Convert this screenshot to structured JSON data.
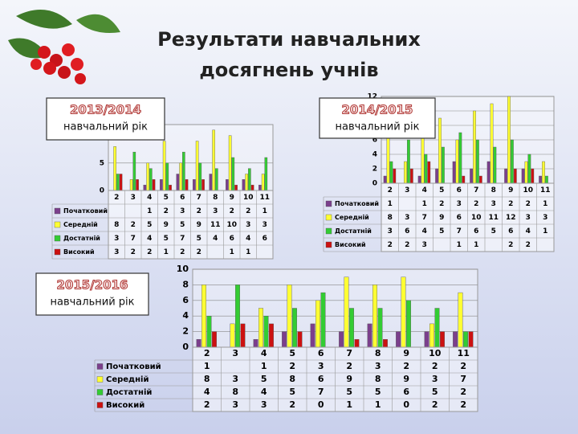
{
  "title": [
    "Результати навчальних",
    "досягнень учнів"
  ],
  "chart_data": [
    {
      "type": "bar",
      "title": "2013/2014",
      "subtitle": "навчальний рік",
      "categories": [
        "2",
        "3",
        "4",
        "5",
        "6",
        "7",
        "8",
        "9",
        "10",
        "11"
      ],
      "series": [
        {
          "name": "Початковий",
          "color": "#7b3f8c",
          "values": [
            null,
            null,
            1,
            2,
            3,
            2,
            3,
            2,
            2,
            1
          ]
        },
        {
          "name": "Середній",
          "color": "#ffff33",
          "values": [
            8,
            2,
            5,
            9,
            5,
            9,
            11,
            10,
            3,
            3
          ]
        },
        {
          "name": "Достатній",
          "color": "#33cc33",
          "values": [
            3,
            7,
            4,
            5,
            7,
            5,
            4,
            6,
            4,
            6
          ]
        },
        {
          "name": "Високий",
          "color": "#cc1111",
          "values": [
            3,
            2,
            2,
            1,
            2,
            2,
            null,
            1,
            1,
            null
          ]
        }
      ],
      "ylim": [
        0,
        12
      ],
      "yticks": [
        0,
        5
      ],
      "grid": true
    },
    {
      "type": "bar",
      "title": "2014/2015",
      "subtitle": "навчальний рік",
      "categories": [
        "2",
        "3",
        "4",
        "5",
        "6",
        "7",
        "8",
        "9",
        "10",
        "11"
      ],
      "series": [
        {
          "name": "Початковий",
          "color": "#7b3f8c",
          "values": [
            1,
            null,
            1,
            2,
            3,
            2,
            3,
            2,
            2,
            1
          ]
        },
        {
          "name": "Середній",
          "color": "#ffff33",
          "values": [
            8,
            3,
            7,
            9,
            6,
            10,
            11,
            12,
            3,
            3
          ]
        },
        {
          "name": "Достатній",
          "color": "#33cc33",
          "values": [
            3,
            6,
            4,
            5,
            7,
            6,
            5,
            6,
            4,
            1
          ]
        },
        {
          "name": "Високий",
          "color": "#cc1111",
          "values": [
            2,
            2,
            3,
            null,
            1,
            1,
            null,
            2,
            2,
            null
          ]
        }
      ],
      "ylim": [
        0,
        12
      ],
      "yticks": [
        0,
        2,
        4,
        6,
        8,
        10,
        12
      ],
      "grid": true
    },
    {
      "type": "bar",
      "title": "2015/2016",
      "subtitle": "навчальний рік",
      "categories": [
        "2",
        "3",
        "4",
        "5",
        "6",
        "7",
        "8",
        "9",
        "10",
        "11"
      ],
      "series": [
        {
          "name": "Початковий",
          "color": "#7b3f8c",
          "values": [
            1,
            null,
            1,
            2,
            3,
            2,
            3,
            2,
            2,
            2
          ]
        },
        {
          "name": "Середній",
          "color": "#ffff33",
          "values": [
            8,
            3,
            5,
            8,
            6,
            9,
            8,
            9,
            3,
            7
          ]
        },
        {
          "name": "Достатній",
          "color": "#33cc33",
          "values": [
            4,
            8,
            4,
            5,
            7,
            5,
            5,
            6,
            5,
            2
          ]
        },
        {
          "name": "Високий",
          "color": "#cc1111",
          "values": [
            2,
            3,
            3,
            2,
            0,
            1,
            1,
            0,
            2,
            2
          ]
        }
      ],
      "ylim": [
        0,
        10
      ],
      "yticks": [
        0,
        2,
        4,
        6,
        8,
        10
      ],
      "grid": true
    }
  ]
}
